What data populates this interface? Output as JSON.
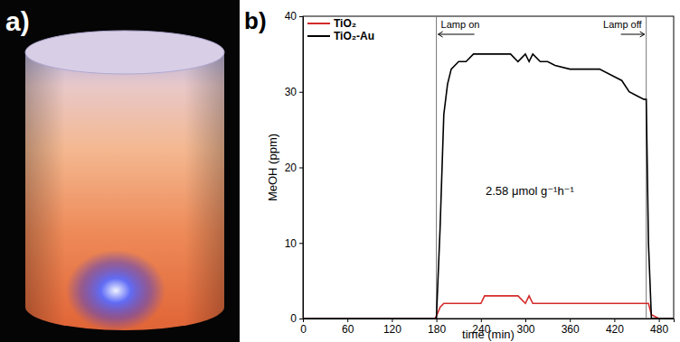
{
  "panel_a": {
    "label": "a)"
  },
  "chart_data": {
    "type": "line",
    "title": "b)",
    "x_label": "time (min)",
    "y_label": "MeOH (ppm)",
    "xlim": [
      0,
      500
    ],
    "xticks": [
      0,
      60,
      120,
      180,
      240,
      300,
      360,
      420,
      480
    ],
    "ylim": [
      0,
      40
    ],
    "yticks": [
      0,
      10,
      20,
      30,
      40
    ],
    "legend": "upper left",
    "x": [
      0,
      60,
      120,
      178,
      180,
      185,
      190,
      195,
      200,
      210,
      220,
      230,
      240,
      245,
      250,
      260,
      270,
      280,
      290,
      300,
      305,
      310,
      320,
      330,
      340,
      360,
      380,
      400,
      420,
      430,
      440,
      450,
      460,
      463,
      466,
      470,
      480,
      500
    ],
    "series": [
      {
        "name": "TiO₂",
        "color": "#d42a2a",
        "values": [
          0,
          0,
          0,
          0,
          0.3,
          1.5,
          2,
          2,
          2,
          2,
          2,
          2,
          2,
          3,
          3,
          3,
          3,
          3,
          3,
          2,
          3,
          2,
          2,
          2,
          2,
          2,
          2,
          2,
          2,
          2,
          2,
          2,
          2,
          2,
          2,
          0.5,
          0,
          0
        ]
      },
      {
        "name": "TiO₂-Au",
        "color": "#000000",
        "values": [
          0,
          0,
          0,
          0,
          0,
          12,
          27,
          31,
          33,
          34,
          34,
          35,
          35,
          35,
          35,
          35,
          35,
          35,
          34,
          35,
          34,
          35,
          34,
          34,
          33.5,
          33,
          33,
          33,
          32,
          31.5,
          30,
          29.5,
          29,
          29,
          10,
          0,
          0,
          0
        ]
      }
    ],
    "annotations": [
      {
        "text": "Lamp on",
        "x": 180
      },
      {
        "text": "Lamp off",
        "x": 463
      },
      {
        "text": "2.58 μmol g⁻¹h⁻¹"
      }
    ]
  }
}
